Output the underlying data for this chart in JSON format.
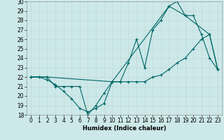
{
  "title": "",
  "xlabel": "Humidex (Indice chaleur)",
  "bg_color": "#cce8e8",
  "grid_color": "#c4d8d8",
  "line_color": "#006666",
  "xlim": [
    -0.5,
    23.5
  ],
  "ylim": [
    18,
    30
  ],
  "xticks": [
    0,
    1,
    2,
    3,
    4,
    5,
    6,
    7,
    8,
    9,
    10,
    11,
    12,
    13,
    14,
    15,
    16,
    17,
    18,
    19,
    20,
    21,
    22,
    23
  ],
  "yticks": [
    18,
    19,
    20,
    21,
    22,
    23,
    24,
    25,
    26,
    27,
    28,
    29,
    30
  ],
  "series1_x": [
    0,
    1,
    2,
    3,
    4,
    5,
    6,
    7,
    8,
    9,
    10,
    11,
    12,
    13,
    14,
    15,
    16,
    17,
    18,
    19,
    20,
    21,
    22,
    23
  ],
  "series1_y": [
    22,
    22,
    22,
    21,
    21,
    21,
    21,
    18,
    19,
    20.3,
    21.5,
    21.5,
    23.5,
    26,
    23,
    27,
    28,
    29.5,
    30,
    28.5,
    28.5,
    26.5,
    24,
    22.8
  ],
  "series2_x": [
    0,
    1,
    2,
    3,
    4,
    5,
    6,
    7,
    8,
    9,
    10,
    11,
    12,
    13,
    14,
    15,
    16,
    17,
    18,
    19,
    20,
    21,
    22,
    23
  ],
  "series2_y": [
    22,
    22,
    21.7,
    21.2,
    20.5,
    19.7,
    18.7,
    18.3,
    18.7,
    19.2,
    21.5,
    21.5,
    21.5,
    21.5,
    21.5,
    22,
    22.2,
    22.8,
    23.5,
    24,
    25,
    26,
    26.5,
    22.8
  ],
  "series3_x": [
    0,
    2,
    10,
    17,
    19,
    22,
    23
  ],
  "series3_y": [
    22,
    22,
    21.5,
    29.5,
    28.5,
    26.5,
    22.8
  ],
  "tick_fontsize": 5.5,
  "xlabel_fontsize": 6.0
}
